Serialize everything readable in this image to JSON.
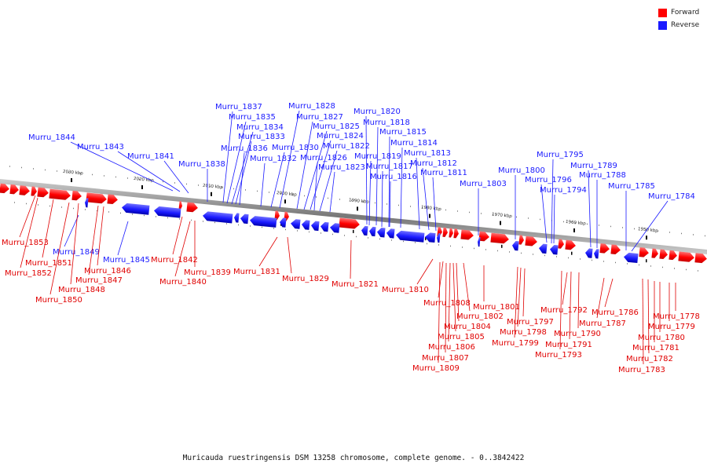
{
  "legend": {
    "forward_label": "Forward",
    "reverse_label": "Reverse",
    "forward_color": "#ff0000",
    "reverse_color": "#1a1aff"
  },
  "caption": "Muricauda ruestringensis DSM 13258 chromosome, complete genome. - 0..3842422",
  "scale_ticks": [
    "2030 kbp",
    "2020 kbp",
    "2010 kbp",
    "2000 kbp",
    "1990 kbp",
    "1980 kbp",
    "1970 kbp",
    "1960 kbp",
    "1950 kbp"
  ],
  "reverse_genes": [
    "Murru_1844",
    "Murru_1843",
    "Murru_1841",
    "Murru_1838",
    "Murru_1837",
    "Murru_1835",
    "Murru_1834",
    "Murru_1833",
    "Murru_1836",
    "Murru_1832",
    "Murru_1830",
    "Murru_1828",
    "Murru_1827",
    "Murru_1825",
    "Murru_1824",
    "Murru_1822",
    "Murru_1826",
    "Murru_1823",
    "Murru_1820",
    "Murru_1818",
    "Murru_1815",
    "Murru_1814",
    "Murru_1813",
    "Murru_1819",
    "Murru_1817",
    "Murru_1812",
    "Murru_1816",
    "Murru_1811",
    "Murru_1803",
    "Murru_1800",
    "Murru_1795",
    "Murru_1796",
    "Murru_1794",
    "Murru_1789",
    "Murru_1788",
    "Murru_1785",
    "Murru_1784",
    "Murru_1849",
    "Murru_1845"
  ],
  "forward_genes": [
    "Murru_1853",
    "Murru_1851",
    "Murru_1852",
    "Murru_1848",
    "Murru_1846",
    "Murru_1847",
    "Murru_1850",
    "Murru_1842",
    "Murru_1840",
    "Murru_1839",
    "Murru_1831",
    "Murru_1829",
    "Murru_1821",
    "Murru_1810",
    "Murru_1808",
    "Murru_1802",
    "Murru_1801",
    "Murru_1804",
    "Murru_1805",
    "Murru_1806",
    "Murru_1807",
    "Murru_1809",
    "Murru_1797",
    "Murru_1798",
    "Murru_1799",
    "Murru_1792",
    "Murru_1790",
    "Murru_1791",
    "Murru_1793",
    "Murru_1786",
    "Murru_1787",
    "Murru_1778",
    "Murru_1779",
    "Murru_1780",
    "Murru_1781",
    "Murru_1782",
    "Murru_1783"
  ]
}
